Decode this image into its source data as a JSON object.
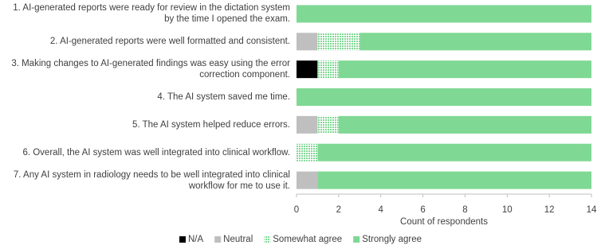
{
  "chart_data": {
    "type": "stacked-bar-horizontal",
    "categories": [
      "1. AI-generated reports were ready for review in the dictation system\nby the time I opened the exam.",
      "2. AI-generated reports were well formatted and consistent.",
      "3. Making changes to AI-generated findings was easy using the error\ncorrection component.",
      "4. The AI system saved me time.",
      "5. The AI system helped reduce errors.",
      "6. Overall, the AI system was well integrated into clinical workflow.",
      "7. Any AI system in radiology needs to be well integrated into clinical\nworkflow for me to use it."
    ],
    "series": [
      {
        "name": "N/A",
        "color": "#000000",
        "values": [
          0,
          0,
          1,
          0,
          0,
          0,
          0
        ]
      },
      {
        "name": "Neutral",
        "color": "#bfbfbf",
        "values": [
          0,
          1,
          0,
          0,
          1,
          0,
          1
        ]
      },
      {
        "name": "Somewhat agree",
        "color": "#7fd893",
        "pattern": "dotted",
        "values": [
          0,
          2,
          1,
          0,
          1,
          1,
          0
        ]
      },
      {
        "name": "Strongly agree",
        "color": "#7fd893",
        "values": [
          14,
          11,
          12,
          14,
          12,
          13,
          13
        ]
      }
    ],
    "xlabel": "Count of respondents",
    "xlim": [
      0,
      14
    ],
    "xticks": [
      0,
      2,
      4,
      6,
      8,
      10,
      12,
      14
    ],
    "legend": "bottom"
  }
}
